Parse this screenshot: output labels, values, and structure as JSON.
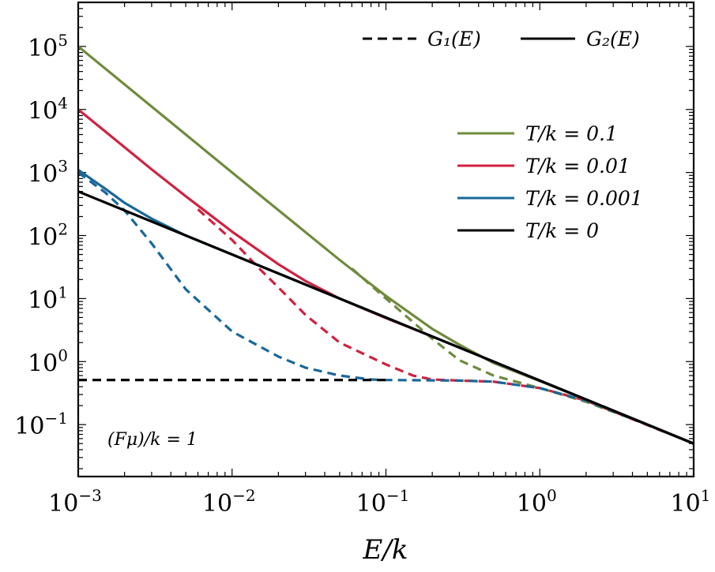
{
  "chart_data": {
    "type": "line",
    "xscale": "log",
    "yscale": "log",
    "xlim": [
      0.001,
      10
    ],
    "ylim": [
      0.015,
      500000
    ],
    "xlabel": "E/k",
    "ylabel": "",
    "annotation": "(Fμ)/k = 1",
    "x_ticks": [
      {
        "value": 0.001,
        "base": "10",
        "exp": "−3"
      },
      {
        "value": 0.01,
        "base": "10",
        "exp": "−2"
      },
      {
        "value": 0.1,
        "base": "10",
        "exp": "−1"
      },
      {
        "value": 1,
        "base": "10",
        "exp": "0"
      },
      {
        "value": 10,
        "base": "10",
        "exp": "1"
      }
    ],
    "y_ticks": [
      {
        "value": 0.1,
        "base": "10",
        "exp": "−1"
      },
      {
        "value": 1,
        "base": "10",
        "exp": "0"
      },
      {
        "value": 10,
        "base": "10",
        "exp": "1"
      },
      {
        "value": 100,
        "base": "10",
        "exp": "2"
      },
      {
        "value": 1000,
        "base": "10",
        "exp": "3"
      },
      {
        "value": 10000,
        "base": "10",
        "exp": "4"
      },
      {
        "value": 100000,
        "base": "10",
        "exp": "5"
      }
    ],
    "style_legend": [
      {
        "label": "G₁(E)",
        "dash": true
      },
      {
        "label": "G₂(E)",
        "dash": false
      }
    ],
    "series_legend": [
      {
        "label": "T/k = 0.1",
        "color": "#6f8b3c"
      },
      {
        "label": "T/k = 0.01",
        "color": "#d0213f"
      },
      {
        "label": "T/k = 0.001",
        "color": "#18679a"
      },
      {
        "label": "T/k = 0"
      }
    ],
    "series": [
      {
        "name": "G2 T/k=0.1",
        "function": "G2",
        "color": "#6f8b3c",
        "dash": false,
        "x": [
          0.001,
          0.005,
          0.01,
          0.05,
          0.1,
          0.2,
          0.3,
          0.5,
          1,
          2,
          5,
          10
        ],
        "y": [
          100000,
          4000,
          1000,
          41,
          11,
          3.3,
          1.85,
          0.95,
          0.49,
          0.25,
          0.1,
          0.05
        ]
      },
      {
        "name": "G1 T/k=0.1",
        "function": "G1",
        "color": "#6f8b3c",
        "dash": true,
        "x": [
          0.06,
          0.1,
          0.2,
          0.3,
          0.5,
          0.8,
          1,
          2,
          5,
          10
        ],
        "y": [
          30,
          10,
          2.3,
          1.05,
          0.6,
          0.44,
          0.38,
          0.23,
          0.1,
          0.05
        ]
      },
      {
        "name": "G2 T/k=0.01",
        "function": "G2",
        "color": "#d0213f",
        "dash": false,
        "x": [
          0.001,
          0.003,
          0.005,
          0.01,
          0.02,
          0.03,
          0.05,
          0.1,
          0.2,
          0.5,
          1,
          10
        ],
        "y": [
          10000,
          1120,
          420,
          115,
          35,
          19,
          10,
          4.9,
          2.5,
          1,
          0.5,
          0.05
        ]
      },
      {
        "name": "G1 T/k=0.01",
        "function": "G1",
        "color": "#d0213f",
        "dash": true,
        "x": [
          0.006,
          0.01,
          0.015,
          0.02,
          0.03,
          0.05,
          0.1,
          0.15,
          0.2,
          0.3,
          0.5,
          1,
          2,
          10
        ],
        "y": [
          260,
          85,
          30,
          15,
          5.5,
          2,
          0.9,
          0.6,
          0.52,
          0.5,
          0.48,
          0.38,
          0.24,
          0.05
        ]
      },
      {
        "name": "G2 T/k=0.001",
        "function": "G2",
        "color": "#18679a",
        "dash": false,
        "x": [
          0.001,
          0.0015,
          0.002,
          0.003,
          0.005,
          0.01,
          10
        ],
        "y": [
          1100,
          550,
          330,
          185,
          100,
          50,
          0.05
        ]
      },
      {
        "name": "G1 T/k=0.001",
        "function": "G1",
        "color": "#18679a",
        "dash": true,
        "x": [
          0.001,
          0.0015,
          0.002,
          0.003,
          0.005,
          0.01,
          0.02,
          0.03,
          0.05,
          0.08,
          0.1,
          0.3,
          0.5,
          1,
          2,
          5,
          10
        ],
        "y": [
          1000,
          480,
          250,
          75,
          14,
          3,
          1.2,
          0.8,
          0.6,
          0.52,
          0.51,
          0.5,
          0.48,
          0.38,
          0.24,
          0.1,
          0.05
        ]
      },
      {
        "name": "G2 T/k=0",
        "function": "G2",
        "color": "#000000",
        "dash": false,
        "x": [
          0.001,
          10
        ],
        "y": [
          500,
          0.05
        ]
      },
      {
        "name": "G1 T/k=0",
        "function": "G1",
        "color": "#000000",
        "dash": true,
        "x": [
          0.001,
          0.1
        ],
        "y": [
          0.51,
          0.51
        ]
      }
    ]
  }
}
